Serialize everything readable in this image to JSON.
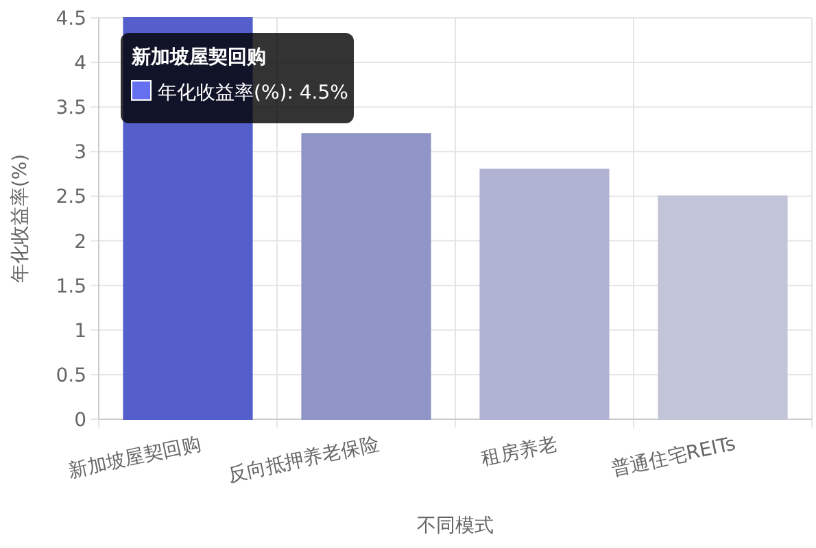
{
  "chart_data": {
    "type": "bar",
    "xlabel": "不同模式",
    "ylabel": "年化收益率(%)",
    "categories": [
      "新加坡屋契回购",
      "反向抵押养老保险",
      "租房养老",
      "普通住宅REITs"
    ],
    "values": [
      4.5,
      3.2,
      2.8,
      2.5
    ],
    "colors": [
      "#6470f0",
      "#a9aee9",
      "#d0d2fb",
      "#e4e6fd"
    ],
    "ylim": [
      0,
      4.5
    ],
    "yticks": [
      0,
      0.5,
      1,
      1.5,
      2,
      2.5,
      3,
      3.5,
      4,
      4.5
    ],
    "grid": true,
    "annotations": [
      "新加坡屋契回购",
      "年化收益率(%): 4.5%"
    ]
  }
}
